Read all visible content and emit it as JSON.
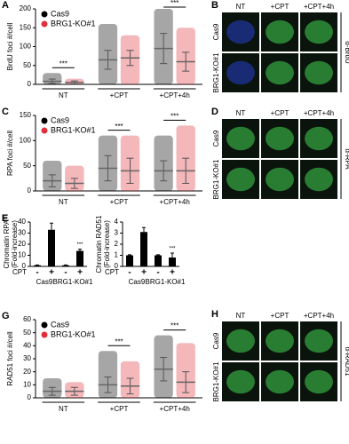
{
  "chart_data": [
    {
      "panel": "A",
      "type": "dot",
      "ylabel": "BrdU foci #/cell",
      "categories": [
        "NT",
        "+CPT",
        "+CPT+4h"
      ],
      "series": [
        {
          "name": "Cas9",
          "color": "#000000",
          "values": [
            8,
            65,
            95
          ],
          "errors": [
            6,
            25,
            40
          ],
          "max": [
            30,
            160,
            200
          ]
        },
        {
          "name": "BRG1-KO#1",
          "color": "#e0303a",
          "values": [
            5,
            70,
            60
          ],
          "errors": [
            4,
            20,
            25
          ],
          "max": [
            15,
            130,
            150
          ]
        }
      ],
      "significance": [
        "***",
        null,
        "***"
      ],
      "ylim": [
        0,
        200
      ],
      "yticks": [
        0,
        50,
        100,
        150,
        200
      ]
    },
    {
      "panel": "C",
      "type": "dot",
      "ylabel": "RPA foci #/cell",
      "categories": [
        "NT",
        "+CPT",
        "+CPT+4h"
      ],
      "series": [
        {
          "name": "Cas9",
          "color": "#000000",
          "values": [
            20,
            45,
            40
          ],
          "errors": [
            12,
            25,
            20
          ],
          "max": [
            60,
            110,
            110
          ]
        },
        {
          "name": "BRG1-KO#1",
          "color": "#e0303a",
          "values": [
            15,
            40,
            40
          ],
          "errors": [
            10,
            25,
            25
          ],
          "max": [
            50,
            110,
            130
          ]
        }
      ],
      "significance": [
        null,
        "***",
        "***"
      ],
      "ylim": [
        0,
        150
      ],
      "yticks": [
        0,
        50,
        100,
        150
      ]
    },
    {
      "panel": "E",
      "type": "bar",
      "ylabel": [
        "Chromatin RPA",
        "(Fold-increase)"
      ],
      "x_label": "CPT",
      "categories": [
        "-",
        "+",
        "-",
        "+"
      ],
      "groups": [
        "Cas9",
        "BRG1-KO#1"
      ],
      "values": [
        1,
        33,
        1,
        14
      ],
      "errors": [
        0.3,
        6,
        0.3,
        1.5
      ],
      "significance": [
        null,
        null,
        null,
        "***"
      ],
      "color": "#000000",
      "ylim": [
        0,
        40
      ],
      "yticks": [
        0,
        10,
        20,
        30,
        40
      ]
    },
    {
      "panel": "F",
      "type": "bar",
      "ylabel": [
        "Chromatin RAD51",
        "(Fold-increase)"
      ],
      "x_label": "CPT",
      "categories": [
        "-",
        "+",
        "-",
        "+"
      ],
      "groups": [
        "Cas9",
        "BRG1-KO#1"
      ],
      "values": [
        1,
        3.1,
        1,
        0.8
      ],
      "errors": [
        0.05,
        0.4,
        0.05,
        0.4
      ],
      "significance": [
        null,
        null,
        null,
        "***"
      ],
      "color": "#000000",
      "ylim": [
        0,
        4
      ],
      "yticks": [
        0,
        1,
        2,
        3,
        4
      ]
    },
    {
      "panel": "G",
      "type": "dot",
      "ylabel": "RAD51 foci #/cell",
      "categories": [
        "NT",
        "+CPT",
        "+CPT+4h"
      ],
      "series": [
        {
          "name": "Cas9",
          "color": "#000000",
          "values": [
            5,
            10,
            22
          ],
          "errors": [
            3,
            6,
            9
          ],
          "max": [
            15,
            36,
            48
          ]
        },
        {
          "name": "BRG1-KO#1",
          "color": "#e0303a",
          "values": [
            5,
            9,
            12
          ],
          "errors": [
            3,
            6,
            8
          ],
          "max": [
            12,
            28,
            42
          ]
        }
      ],
      "significance": [
        null,
        "***",
        "***"
      ],
      "ylim": [
        0,
        60
      ],
      "yticks": [
        0,
        10,
        20,
        30,
        40,
        50,
        60
      ]
    }
  ],
  "images": [
    {
      "panel": "B",
      "columns": [
        "NT",
        "+CPT",
        "+CPT+4h"
      ],
      "rows": [
        "Cas9",
        "BRG1-KO#1"
      ],
      "stain": "α-BrdU"
    },
    {
      "panel": "D",
      "columns": [
        "NT",
        "+CPT",
        "+CPT+4h"
      ],
      "rows": [
        "Cas9",
        "BRG1-KO#1"
      ],
      "stain": "α-RPA"
    },
    {
      "panel": "H",
      "columns": [
        "NT",
        "+CPT",
        "+CPT+4h"
      ],
      "rows": [
        "Cas9",
        "BRG1-KO#1"
      ],
      "stain": "α-RAD51"
    }
  ]
}
